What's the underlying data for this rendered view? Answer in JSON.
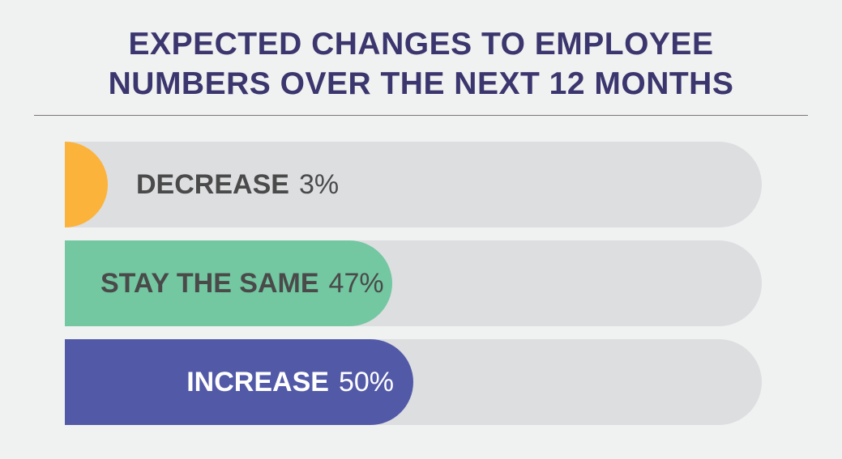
{
  "chart_data": {
    "type": "bar",
    "orientation": "horizontal",
    "title": "EXPECTED CHANGES TO EMPLOYEE NUMBERS OVER THE NEXT 12 MONTHS",
    "title_lines": [
      "EXPECTED CHANGES TO EMPLOYEE",
      "NUMBERS OVER THE NEXT 12 MONTHS"
    ],
    "categories": [
      "DECREASE",
      "STAY THE SAME",
      "INCREASE"
    ],
    "values": [
      3,
      47,
      50
    ],
    "value_labels": [
      "3%",
      "47%",
      "50%"
    ],
    "unit": "%",
    "ylim": [
      0,
      100
    ],
    "colors": [
      "#fcb33b",
      "#73c7a1",
      "#525aa8"
    ],
    "track_color": "#dddee0",
    "label_colors": [
      "#4a4a4a",
      "#4a4a4a",
      "#ffffff"
    ],
    "grid": false,
    "legend": "none"
  }
}
